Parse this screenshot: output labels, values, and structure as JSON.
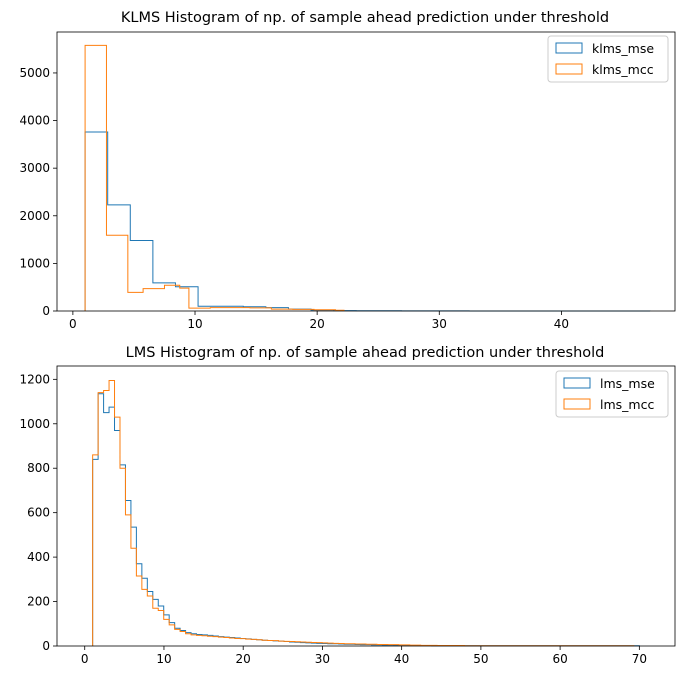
{
  "chart_data": [
    {
      "type": "histogram",
      "title": "KLMS Histogram of np. of sample ahead prediction under threshold",
      "xlabel": "",
      "ylabel": "",
      "xlim": [
        -1.3,
        49.3
      ],
      "ylim": [
        0,
        5860
      ],
      "xticks": [
        0,
        10,
        20,
        30,
        40
      ],
      "yticks": [
        0,
        1000,
        2000,
        3000,
        4000,
        5000
      ],
      "grid": false,
      "legend_position": "top-right",
      "series": [
        {
          "name": "klms_mse",
          "color": "#1f77b4",
          "bins": [
            1,
            2.85,
            4.7,
            6.55,
            8.4,
            10.25,
            12.1,
            13.95,
            15.8,
            17.65,
            19.5,
            21.35,
            23.2,
            25.05,
            26.9,
            28.75,
            30.6,
            32.45,
            34.3,
            36.15,
            38,
            39.85,
            41.7,
            43.55,
            45.4,
            47.25
          ],
          "counts": [
            3760,
            2230,
            1480,
            590,
            510,
            100,
            100,
            90,
            70,
            40,
            20,
            8,
            5,
            4,
            3,
            2,
            2,
            1,
            1,
            1,
            1,
            1,
            1,
            1,
            1
          ]
        },
        {
          "name": "klms_mcc",
          "color": "#ff7f0e",
          "bins": [
            1,
            2.75,
            4.5,
            5.75,
            7.5,
            8.75,
            9.5,
            11.25,
            13,
            14.5,
            16.25,
            18,
            19.75,
            21.5,
            22.2
          ],
          "counts": [
            5580,
            1590,
            390,
            470,
            540,
            480,
            60,
            70,
            70,
            65,
            40,
            35,
            25,
            15
          ]
        }
      ]
    },
    {
      "type": "histogram",
      "title": "LMS Histogram of np. of sample ahead prediction under threshold",
      "xlabel": "",
      "ylabel": "",
      "xlim": [
        -3.5,
        74.5
      ],
      "ylim": [
        0,
        1260
      ],
      "xticks": [
        0,
        10,
        20,
        30,
        40,
        50,
        60,
        70
      ],
      "yticks": [
        0,
        200,
        400,
        600,
        800,
        1000,
        1200
      ],
      "grid": false,
      "legend_position": "top-right",
      "series": [
        {
          "name": "lms_mse",
          "color": "#1f77b4",
          "bin_start": 1,
          "bin_width": 0.69,
          "counts": [
            840,
            1135,
            1050,
            1075,
            970,
            815,
            655,
            535,
            370,
            305,
            245,
            210,
            180,
            140,
            105,
            80,
            70,
            60,
            55,
            52,
            50,
            48,
            45,
            42,
            40,
            38,
            36,
            34,
            32,
            30,
            28,
            26,
            25,
            23,
            22,
            20,
            18,
            17,
            15,
            14,
            13,
            12,
            11,
            10,
            10,
            9,
            8,
            8,
            7,
            6,
            6,
            5,
            5,
            4,
            4,
            3,
            3,
            3,
            2,
            2,
            2,
            2,
            1,
            1,
            1,
            1,
            1,
            1,
            1,
            1,
            1,
            1,
            1,
            1,
            1,
            1,
            1,
            1,
            1,
            1,
            1,
            1,
            1,
            1,
            1,
            1,
            1,
            1,
            1,
            1,
            1,
            1,
            1,
            1,
            1,
            1,
            1,
            1,
            1,
            1
          ]
        },
        {
          "name": "lms_mcc",
          "color": "#ff7f0e",
          "bin_start": 1,
          "bin_width": 0.69,
          "counts": [
            860,
            1140,
            1150,
            1195,
            1030,
            800,
            590,
            440,
            315,
            255,
            225,
            170,
            160,
            120,
            95,
            75,
            65,
            55,
            50,
            48,
            46,
            44,
            42,
            40,
            38,
            36,
            34,
            33,
            31,
            30,
            28,
            26,
            25,
            24,
            22,
            21,
            20,
            19,
            18,
            17,
            16,
            15,
            14,
            13,
            12,
            11,
            10,
            10,
            9,
            9,
            8,
            8,
            7,
            7,
            6,
            6,
            5,
            5,
            4,
            4,
            3,
            3,
            3,
            2,
            2,
            2,
            2,
            2,
            1,
            1,
            1,
            1,
            1,
            1,
            1,
            1,
            1,
            1,
            1,
            1,
            1,
            1,
            1,
            1,
            1,
            1,
            1,
            1,
            1,
            1,
            1,
            1,
            1,
            1,
            1,
            1,
            1,
            1,
            1
          ]
        }
      ]
    }
  ]
}
